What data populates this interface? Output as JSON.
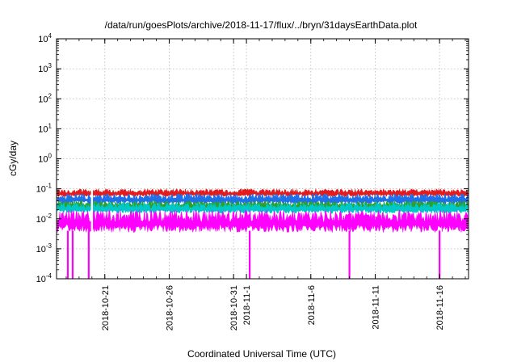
{
  "chart_data": {
    "type": "line",
    "title": "/data/run/goesPlots/archive/2018-11-17/flux/../bryn/31daysEarthData.plot",
    "xlabel": "Coordinated Universal Time (UTC)",
    "ylabel": "cGy/day",
    "yscale": "log",
    "ylim": [
      0.0001,
      10000
    ],
    "xlim": [
      "2018-10-17T06:00",
      "2018-11-18T06:00"
    ],
    "grid": true,
    "legend": "none",
    "y_ticks": [
      {
        "value": 0.0001,
        "base": "10",
        "exp": "-4"
      },
      {
        "value": 0.001,
        "base": "10",
        "exp": "-3"
      },
      {
        "value": 0.01,
        "base": "10",
        "exp": "-2"
      },
      {
        "value": 0.1,
        "base": "10",
        "exp": "-1"
      },
      {
        "value": 1,
        "base": "10",
        "exp": "0"
      },
      {
        "value": 10,
        "base": "10",
        "exp": "1"
      },
      {
        "value": 100,
        "base": "10",
        "exp": "2"
      },
      {
        "value": 1000,
        "base": "10",
        "exp": "3"
      },
      {
        "value": 10000,
        "base": "10",
        "exp": "4"
      }
    ],
    "x_ticks": [
      {
        "date": "2018-10-21T00:00",
        "lines": [
          "2018-10-21"
        ]
      },
      {
        "date": "2018-10-26T00:00",
        "lines": [
          "2018-10-26"
        ]
      },
      {
        "date": "2018-10-31T00:00",
        "lines": [
          "2018-10-31"
        ]
      },
      {
        "date": "2018-11-01T00:00",
        "lines": [
          "2018-11-1"
        ]
      },
      {
        "date": "2018-11-06T00:00",
        "lines": [
          "2018-11-6"
        ]
      },
      {
        "date": "2018-11-11T00:00",
        "lines": [
          "2018-11-11"
        ]
      },
      {
        "date": "2018-11-16T00:00",
        "lines": [
          "2018-11-16"
        ]
      }
    ],
    "series": [
      {
        "color": "#e41a1c",
        "values_typical": [
          0.055,
          0.1
        ],
        "description_level": "top band"
      },
      {
        "color": "#1e6fe8",
        "values_typical": [
          0.03,
          0.07
        ]
      },
      {
        "color": "#2ca02c",
        "values_typical": [
          0.02,
          0.04
        ]
      },
      {
        "color": "#00c8c8",
        "values_typical": [
          0.015,
          0.035
        ]
      },
      {
        "color": "#ff00ff",
        "values_typical": [
          0.0035,
          0.02
        ]
      }
    ],
    "dropouts": [
      {
        "date": "2018-10-18T03:00",
        "min": 0.0001
      },
      {
        "date": "2018-10-18T12:00",
        "min": 0.0001
      },
      {
        "date": "2018-10-19T18:00",
        "min": 0.0001
      },
      {
        "date": "2018-11-01T06:00",
        "min": 0.0001
      },
      {
        "date": "2018-11-09T00:00",
        "min": 0.0001
      },
      {
        "date": "2018-11-16T00:00",
        "min": 0.0001
      }
    ],
    "gaps": [
      {
        "date": "2018-10-20T00:00"
      }
    ]
  }
}
